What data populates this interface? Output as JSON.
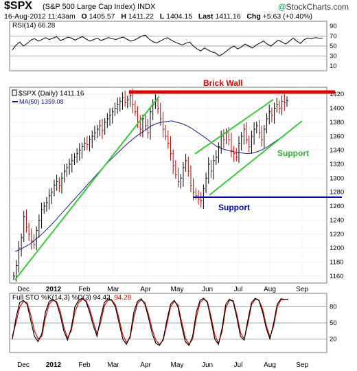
{
  "header": {
    "symbol": "$SPX",
    "description": "(S&P 500 Large Cap Index)",
    "exchange": "INDX",
    "brand": "StockCharts.com",
    "date": "16-Aug-2012 11:43am",
    "open_label": "O",
    "open": "1405.57",
    "high_label": "H",
    "high": "1411.22",
    "low_label": "L",
    "low": "1404.15",
    "last_label": "Last",
    "last": "1411.16",
    "chg_label": "Chg",
    "chg": "+5.63 (+0.40%)"
  },
  "chart_data": [
    {
      "type": "line",
      "panel": "rsi",
      "title": "RSI(14) 66.28",
      "ylim": [
        0,
        100
      ],
      "yticks": [
        10,
        30,
        50,
        70,
        90
      ],
      "reference_lines": [
        30,
        50,
        70
      ],
      "series": [
        {
          "name": "RSI(14)",
          "color": "#000000",
          "values": [
            42,
            52,
            58,
            50,
            55,
            62,
            65,
            60,
            63,
            67,
            63,
            66,
            69,
            61,
            64,
            68,
            66,
            62,
            66,
            69,
            64,
            60,
            63,
            66,
            61,
            64,
            67,
            65,
            63,
            66,
            68,
            64,
            60,
            62,
            66,
            70,
            72,
            64,
            59,
            56,
            60,
            64,
            67,
            62,
            58,
            55,
            52,
            56,
            58,
            50,
            44,
            40,
            46,
            42,
            38,
            36,
            30,
            34,
            40,
            46,
            50,
            44,
            48,
            54,
            50,
            46,
            52,
            56,
            60,
            54,
            50,
            56,
            62,
            58,
            54,
            60,
            66,
            60,
            55,
            63,
            66,
            65,
            67,
            66,
            66
          ]
        }
      ]
    },
    {
      "type": "line",
      "panel": "price",
      "title": "$SPX (Daily) 1411.16",
      "legend": [
        {
          "name": "MA(50) 1359.08",
          "color": "#1a1a8c"
        }
      ],
      "ylim": [
        1150,
        1430
      ],
      "yticks": [
        1160,
        1180,
        1200,
        1220,
        1240,
        1260,
        1280,
        1300,
        1320,
        1340,
        1360,
        1380,
        1400,
        1420
      ],
      "xticks": [
        "Dec",
        "2012",
        "Feb",
        "Mar",
        "Apr",
        "May",
        "Jun",
        "Jul",
        "Aug",
        "Sep"
      ],
      "series": [
        {
          "name": "$SPX",
          "color": "#000000",
          "values": [
            1160,
            1175,
            1200,
            1215,
            1245,
            1230,
            1220,
            1210,
            1205,
            1225,
            1240,
            1255,
            1260,
            1265,
            1275,
            1280,
            1290,
            1295,
            1290,
            1300,
            1310,
            1315,
            1320,
            1325,
            1330,
            1335,
            1340,
            1345,
            1350,
            1348,
            1355,
            1360,
            1365,
            1370,
            1375,
            1368,
            1380,
            1385,
            1390,
            1395,
            1400,
            1405,
            1410,
            1415,
            1408,
            1412,
            1418,
            1405,
            1395,
            1380,
            1370,
            1385,
            1375,
            1365,
            1395,
            1405,
            1410,
            1400,
            1385,
            1370,
            1360,
            1350,
            1335,
            1318,
            1305,
            1295,
            1300,
            1315,
            1325,
            1310,
            1290,
            1280,
            1275,
            1270,
            1268,
            1285,
            1300,
            1320,
            1310,
            1325,
            1330,
            1345,
            1360,
            1355,
            1365,
            1355,
            1340,
            1335,
            1330,
            1350,
            1360,
            1370,
            1355,
            1345,
            1360,
            1370,
            1375,
            1365,
            1355,
            1370,
            1385,
            1395,
            1390,
            1400,
            1405,
            1400,
            1410,
            1408,
            1411
          ]
        },
        {
          "name": "MA(50)",
          "color": "#1a1a8c",
          "values": [
            1195,
            1198,
            1202,
            1206,
            1212,
            1218,
            1225,
            1232,
            1240,
            1248,
            1256,
            1264,
            1272,
            1280,
            1288,
            1296,
            1304,
            1312,
            1320,
            1327,
            1334,
            1341,
            1348,
            1354,
            1360,
            1365,
            1370,
            1375,
            1378,
            1380,
            1381,
            1382,
            1380,
            1378,
            1375,
            1371,
            1366,
            1361,
            1356,
            1350,
            1345,
            1342,
            1340,
            1338,
            1337,
            1336,
            1335,
            1336,
            1338,
            1341,
            1345,
            1350,
            1355,
            1359
          ]
        }
      ],
      "annotations": [
        {
          "text": "Brick Wall",
          "color": "#e00000"
        },
        {
          "text": "Support",
          "color": "#2ab42a"
        },
        {
          "text": "Support",
          "color": "#0000cc"
        }
      ]
    },
    {
      "type": "line",
      "panel": "stochastic",
      "title": "Full STO %K(14,3) %D(3) 94.43, 94.28",
      "ylim": [
        0,
        100
      ],
      "yticks": [
        20,
        50,
        80
      ],
      "reference_lines": [
        20,
        50,
        80
      ],
      "series": [
        {
          "name": "%K(14,3)",
          "color": "#000000",
          "values": [
            20,
            60,
            88,
            92,
            85,
            55,
            25,
            15,
            30,
            70,
            90,
            94,
            88,
            65,
            35,
            18,
            40,
            80,
            92,
            96,
            90,
            70,
            45,
            25,
            60,
            88,
            95,
            92,
            80,
            50,
            20,
            10,
            25,
            70,
            90,
            95,
            85,
            60,
            30,
            12,
            8,
            20,
            55,
            85,
            92,
            80,
            45,
            15,
            8,
            25,
            70,
            92,
            96,
            88,
            55,
            20,
            10,
            40,
            85,
            94,
            90,
            60,
            25,
            18,
            55,
            88,
            96,
            92,
            70,
            40,
            20,
            50,
            85,
            95,
            94,
            94
          ]
        },
        {
          "name": "%D(3)",
          "color": "#e00000",
          "values": [
            25,
            50,
            80,
            90,
            88,
            65,
            35,
            20,
            25,
            60,
            85,
            92,
            90,
            72,
            42,
            22,
            35,
            70,
            88,
            94,
            92,
            76,
            52,
            30,
            50,
            82,
            92,
            93,
            84,
            58,
            28,
            14,
            22,
            60,
            86,
            93,
            88,
            66,
            38,
            18,
            10,
            18,
            48,
            80,
            90,
            84,
            52,
            22,
            10,
            20,
            60,
            88,
            94,
            90,
            62,
            28,
            12,
            34,
            78,
            92,
            92,
            66,
            32,
            20,
            48,
            84,
            94,
            93,
            76,
            46,
            24,
            44,
            80,
            93,
            94,
            94
          ]
        }
      ]
    }
  ],
  "price_panel": {
    "title": "$SPX (Daily) 1411.16",
    "ma_label": "MA(50) 1359.08",
    "brick_wall": "Brick Wall",
    "support_green": "Support",
    "support_blue": "Support"
  },
  "rsi_panel": {
    "title": "RSI(14) 66.28"
  },
  "sto_panel": {
    "title_prefix": "Full STO %K(14,3) %D(3) 94.43,",
    "title_value": "94.28"
  }
}
